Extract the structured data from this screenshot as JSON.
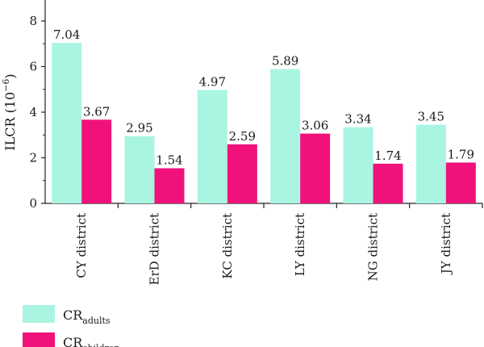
{
  "chart_data": {
    "type": "bar",
    "categories": [
      "CY district",
      "ErD district",
      "KC district",
      "LY district",
      "NG district",
      "JY district"
    ],
    "series": [
      {
        "name": "CR_adults",
        "legend_main": "CR",
        "legend_sub": "adults",
        "color": "#aaf5e1",
        "values": [
          7.04,
          2.95,
          4.97,
          5.89,
          3.34,
          3.45
        ]
      },
      {
        "name": "CR_children",
        "legend_main": "CR",
        "legend_sub": "children",
        "color": "#f0127a",
        "values": [
          3.67,
          1.54,
          2.59,
          3.06,
          1.74,
          1.79
        ]
      }
    ],
    "ylabel_main": "ILCR (10",
    "ylabel_exp": "−6",
    "ylabel_close": ")",
    "ylim": [
      0,
      8
    ],
    "yticks": [
      0,
      2,
      4,
      6,
      8
    ],
    "grid": false,
    "legend_position": "bottom-left"
  }
}
